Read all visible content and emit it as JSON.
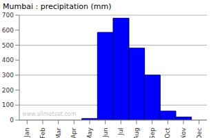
{
  "chart_data": {
    "type": "bar",
    "title": "Mumbai : precipitation (mm)",
    "categories": [
      "Jan",
      "Feb",
      "Mar",
      "Apr",
      "May",
      "Jun",
      "Jul",
      "Aug",
      "Sep",
      "Oct",
      "Nov",
      "Dec"
    ],
    "values": [
      0,
      0,
      0,
      0,
      10,
      585,
      680,
      480,
      300,
      60,
      20,
      0
    ],
    "color": "#0000ff",
    "ylim": [
      0,
      700
    ],
    "yticks": [
      0,
      100,
      200,
      300,
      400,
      500,
      600,
      700
    ],
    "grid": true,
    "annotations": [
      "www.allmetsat.com"
    ]
  }
}
